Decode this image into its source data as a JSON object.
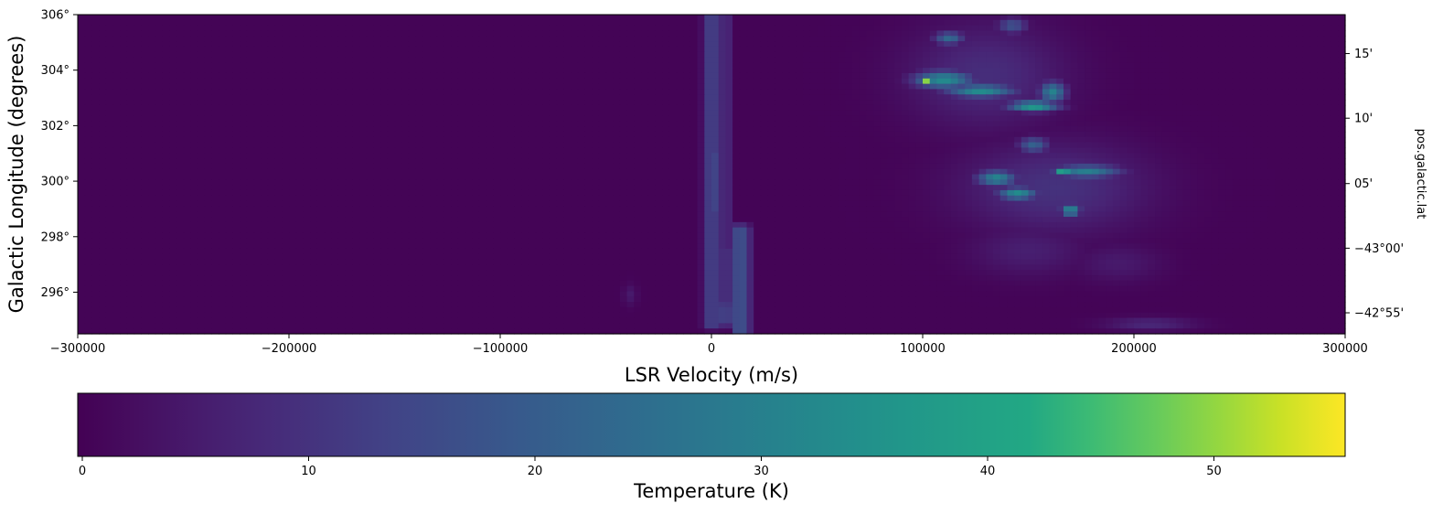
{
  "chart_data": {
    "type": "heatmap",
    "title": "",
    "xlabel": "LSR Velocity (m/s)",
    "ylabel": "Galactic Longitude (degrees)",
    "secondary_ylabel": "pos.galactic.lat",
    "colorbar_label": "Temperature (K)",
    "colormap": "viridis",
    "xlim": [
      -300000,
      300000
    ],
    "ylim": [
      294.5,
      306
    ],
    "clim": [
      0,
      56
    ],
    "x_ticks": [
      {
        "value": -300000,
        "label": "−300000"
      },
      {
        "value": -200000,
        "label": "−200000"
      },
      {
        "value": -100000,
        "label": "−100000"
      },
      {
        "value": 0,
        "label": "0"
      },
      {
        "value": 100000,
        "label": "100000"
      },
      {
        "value": 200000,
        "label": "200000"
      },
      {
        "value": 300000,
        "label": "300000"
      }
    ],
    "y_ticks": [
      {
        "value": 296,
        "label": "296°"
      },
      {
        "value": 298,
        "label": "298°"
      },
      {
        "value": 300,
        "label": "300°"
      },
      {
        "value": 302,
        "label": "302°"
      },
      {
        "value": 304,
        "label": "304°"
      },
      {
        "value": 306,
        "label": "306°"
      }
    ],
    "lat_ticks": [
      {
        "value": -42.917,
        "label": "−42°55'"
      },
      {
        "value": -43.0,
        "label": "−43°00'"
      },
      {
        "value": -43.083,
        "label": "05'"
      },
      {
        "value": -43.167,
        "label": "10'"
      },
      {
        "value": -43.25,
        "label": "15'"
      }
    ],
    "lat_range": [
      -42.89,
      -43.3
    ],
    "colorbar_ticks": [
      {
        "value": 0,
        "label": "0"
      },
      {
        "value": 10,
        "label": "10"
      },
      {
        "value": 20,
        "label": "20"
      },
      {
        "value": 30,
        "label": "30"
      },
      {
        "value": 40,
        "label": "40"
      },
      {
        "value": 50,
        "label": "50"
      }
    ],
    "background_value": 0.5,
    "emission_features": [
      {
        "shape": "vstrip",
        "v": [
          -3000,
          4000
        ],
        "lon": [
          294.8,
          306
        ],
        "temp": 12
      },
      {
        "shape": "vstrip",
        "v": [
          4000,
          8000
        ],
        "lon": [
          294.8,
          306
        ],
        "temp": 7
      },
      {
        "shape": "vstrip",
        "v": [
          -1000,
          3000
        ],
        "lon": [
          299,
          301
        ],
        "temp": 14
      },
      {
        "shape": "vstrip",
        "v": [
          12000,
          17000
        ],
        "lon": [
          294.6,
          298.3
        ],
        "temp": 16
      },
      {
        "shape": "vstrip",
        "v": [
          3000,
          8000
        ],
        "lon": [
          294.9,
          295.5
        ],
        "temp": 13
      },
      {
        "shape": "vstrip",
        "v": [
          3000,
          15000
        ],
        "lon": [
          295.5,
          297.5
        ],
        "temp": 9
      },
      {
        "shape": "blob",
        "v": [
          95000,
          125000
        ],
        "lon": [
          303.3,
          304.0
        ],
        "temp": 34
      },
      {
        "shape": "blob",
        "v": [
          98000,
          106000
        ],
        "lon": [
          303.5,
          303.8
        ],
        "temp": 56
      },
      {
        "shape": "blob",
        "v": [
          110000,
          145000
        ],
        "lon": [
          303.0,
          303.5
        ],
        "temp": 34
      },
      {
        "shape": "blob",
        "v": [
          140000,
          165000
        ],
        "lon": [
          302.5,
          302.9
        ],
        "temp": 40
      },
      {
        "shape": "blob",
        "v": [
          155000,
          168000
        ],
        "lon": [
          302.8,
          303.6
        ],
        "temp": 31
      },
      {
        "shape": "blob",
        "v": [
          105000,
          120000
        ],
        "lon": [
          304.9,
          305.4
        ],
        "temp": 24
      },
      {
        "shape": "blob",
        "v": [
          135000,
          150000
        ],
        "lon": [
          305.3,
          305.9
        ],
        "temp": 18
      },
      {
        "shape": "blob",
        "v": [
          90000,
          170000
        ],
        "lon": [
          301.8,
          305.8
        ],
        "temp": 9
      },
      {
        "shape": "blob",
        "v": [
          145000,
          160000
        ],
        "lon": [
          301.0,
          301.6
        ],
        "temp": 22
      },
      {
        "shape": "blob",
        "v": [
          125000,
          145000
        ],
        "lon": [
          299.8,
          300.4
        ],
        "temp": 32
      },
      {
        "shape": "blob",
        "v": [
          135000,
          155000
        ],
        "lon": [
          299.3,
          299.8
        ],
        "temp": 34
      },
      {
        "shape": "blob",
        "v": [
          160000,
          195000
        ],
        "lon": [
          300.1,
          300.6
        ],
        "temp": 30
      },
      {
        "shape": "blob",
        "v": [
          163000,
          170000
        ],
        "lon": [
          300.2,
          300.5
        ],
        "temp": 48
      },
      {
        "shape": "blob",
        "v": [
          165000,
          175000
        ],
        "lon": [
          298.7,
          299.2
        ],
        "temp": 34
      },
      {
        "shape": "blob",
        "v": [
          115000,
          210000
        ],
        "lon": [
          298.0,
          301.5
        ],
        "temp": 10
      },
      {
        "shape": "blob",
        "v": [
          120000,
          180000
        ],
        "lon": [
          296.5,
          298.5
        ],
        "temp": 6
      },
      {
        "shape": "blob",
        "v": [
          170000,
          215000
        ],
        "lon": [
          296.3,
          297.8
        ],
        "temp": 5
      },
      {
        "shape": "blob",
        "v": [
          185000,
          230000
        ],
        "lon": [
          294.6,
          295.1
        ],
        "temp": 8
      },
      {
        "shape": "blob",
        "v": [
          -42000,
          -35000
        ],
        "lon": [
          295.5,
          296.3
        ],
        "temp": 5
      }
    ]
  }
}
